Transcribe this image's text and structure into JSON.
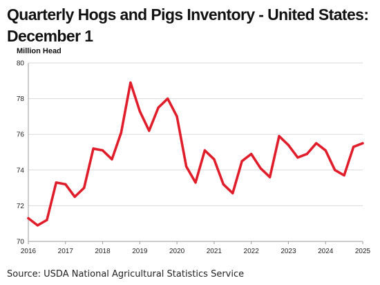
{
  "source": "Source: USDA National Agricultural Statistics Service",
  "chart_data": {
    "type": "line",
    "title": "Quarterly Hogs and Pigs Inventory - United States: December 1",
    "ylabel": "Million Head",
    "xlabel": "",
    "ylim": [
      70,
      80
    ],
    "yticks": [
      70,
      72,
      74,
      76,
      78,
      80
    ],
    "xlim": [
      2016,
      2025
    ],
    "xticks": [
      "2016",
      "2017",
      "2018",
      "2019",
      "2020",
      "2021",
      "2022",
      "2023",
      "2024",
      "2025"
    ],
    "grid": true,
    "legend": "none",
    "line_color": "#e01e2b",
    "series": [
      {
        "x": [
          2016.0,
          2016.25,
          2016.5,
          2016.75,
          2017.0,
          2017.25,
          2017.5,
          2017.75,
          2018.0,
          2018.25,
          2018.5,
          2018.75,
          2019.0,
          2019.25,
          2019.5,
          2019.75,
          2020.0,
          2020.25,
          2020.5,
          2020.75,
          2021.0,
          2021.25,
          2021.5,
          2021.75,
          2022.0,
          2022.25,
          2022.5,
          2022.75,
          2023.0,
          2023.25,
          2023.5,
          2023.75,
          2024.0,
          2024.25,
          2024.5,
          2024.75,
          2025.0
        ],
        "values": [
          71.3,
          70.9,
          71.2,
          73.3,
          73.2,
          72.5,
          73.0,
          75.2,
          75.1,
          74.6,
          76.1,
          78.9,
          77.3,
          76.2,
          77.5,
          78.0,
          77.0,
          74.2,
          73.3,
          75.1,
          74.6,
          73.2,
          72.7,
          74.5,
          74.9,
          74.1,
          73.6,
          75.9,
          75.4,
          74.7,
          74.9,
          75.5,
          75.1,
          74.0,
          73.7,
          75.3,
          75.5
        ]
      }
    ]
  }
}
